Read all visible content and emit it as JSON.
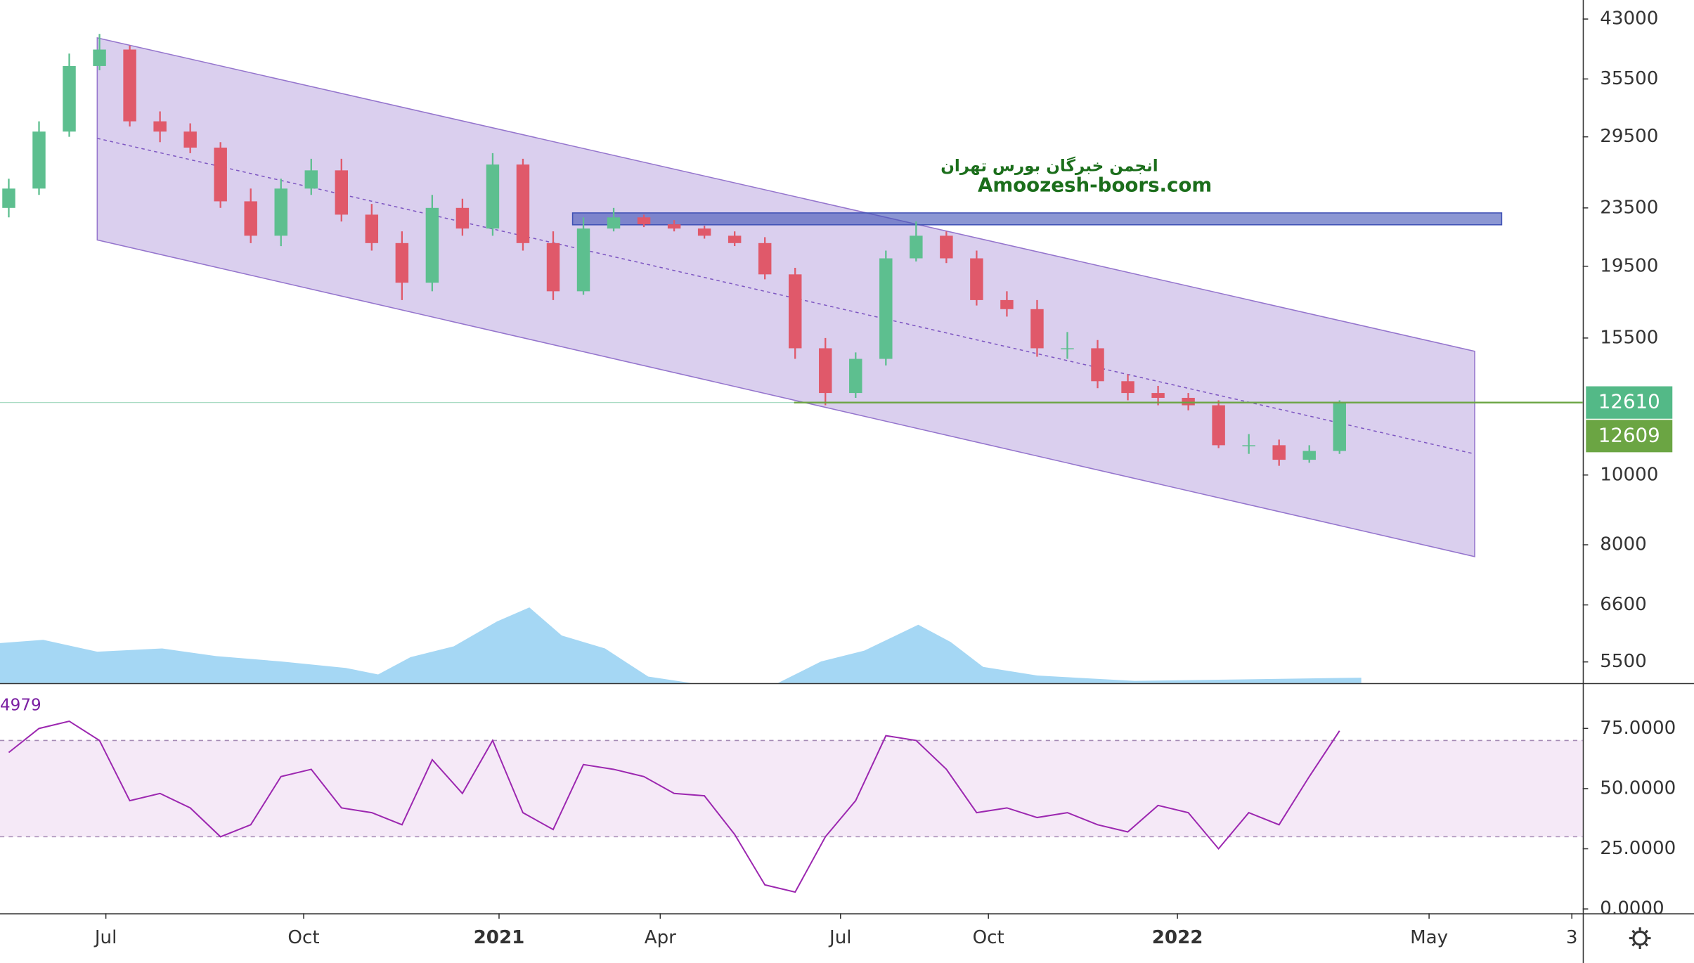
{
  "chart_data": {
    "type": "candlestick",
    "open": [
      23500,
      25000,
      30000,
      37000,
      39000,
      31000,
      30000,
      28500,
      24000,
      21500,
      25000,
      26500,
      23000,
      21000,
      18500,
      23500,
      22000,
      27000,
      21000,
      18000,
      22000,
      22800,
      22300,
      22000,
      21500,
      21000,
      19000,
      15000,
      13000,
      14500,
      20000,
      21500,
      20000,
      17500,
      17000,
      15000,
      15000,
      13500,
      13000,
      12800,
      12500,
      11000,
      11000,
      10500,
      10800
    ],
    "high": [
      25800,
      31000,
      38500,
      41000,
      39500,
      32000,
      30800,
      29000,
      25000,
      25800,
      27500,
      27500,
      23800,
      21800,
      24500,
      24200,
      28000,
      27500,
      21800,
      22800,
      23500,
      23000,
      22600,
      22200,
      21800,
      21400,
      19400,
      15500,
      14800,
      20500,
      22500,
      21800,
      20500,
      18000,
      17500,
      15800,
      15400,
      13800,
      13300,
      13000,
      12700,
      11400,
      11200,
      11000,
      12700
    ],
    "low": [
      22800,
      24500,
      29500,
      36500,
      30500,
      29000,
      28000,
      23500,
      21000,
      20800,
      24500,
      22500,
      20500,
      17500,
      18000,
      21500,
      21500,
      20500,
      17500,
      17800,
      21800,
      22100,
      21800,
      21300,
      20800,
      18700,
      14500,
      12500,
      12800,
      14200,
      19800,
      19700,
      17200,
      16600,
      14600,
      14500,
      13200,
      12700,
      12500,
      12300,
      10900,
      10700,
      10300,
      10400,
      10700
    ],
    "close": [
      25000,
      30000,
      37000,
      39000,
      31000,
      30000,
      28500,
      24000,
      21500,
      25000,
      26500,
      23000,
      21000,
      18500,
      23500,
      22000,
      27000,
      21000,
      18000,
      22000,
      22800,
      22300,
      22000,
      21500,
      21000,
      19000,
      15000,
      13000,
      14500,
      20000,
      21500,
      20000,
      17500,
      17000,
      15000,
      15000,
      13500,
      13000,
      12800,
      12500,
      11000,
      11000,
      10500,
      10800,
      12610
    ],
    "up_color": "#5dbf8f",
    "down_color": "#e0596a",
    "log_scale": true,
    "ylim": [
      5140,
      45700
    ],
    "yticks": [
      5500,
      6600,
      8000,
      10000,
      15500,
      19500,
      23500,
      29500,
      35500,
      43000
    ],
    "xlim": [
      -0.29,
      52.04
    ],
    "xticks": [
      {
        "value": 3.21,
        "label": "Jul"
      },
      {
        "value": 9.75,
        "label": "Oct"
      },
      {
        "value": 16.21,
        "label": "2021"
      },
      {
        "value": 21.54,
        "label": "Apr"
      },
      {
        "value": 27.5,
        "label": "Jul"
      },
      {
        "value": 32.39,
        "label": "Oct"
      },
      {
        "value": 38.64,
        "label": "2022"
      },
      {
        "value": 46.96,
        "label": "May"
      },
      {
        "value": 51.68,
        "label": "3"
      }
    ],
    "price_lines": [
      {
        "value": 12610,
        "color": "#53b987"
      },
      {
        "value": 12609,
        "color": "#6ba543"
      }
    ],
    "annotation": {
      "title": "انجمن خبرگان بورس تهران",
      "subtitle": "Amoozesh-boors.com"
    },
    "rsi": {
      "label": "4979",
      "color": "#9c27b0",
      "values": [
        65,
        75,
        78,
        70,
        45,
        48,
        42,
        30,
        35,
        55,
        58,
        42,
        40,
        35,
        62,
        48,
        70,
        40,
        33,
        60,
        58,
        55,
        48,
        47,
        31,
        10,
        7,
        30,
        45,
        72,
        70,
        58,
        40,
        42,
        38,
        40,
        35,
        32,
        43,
        40,
        25,
        40,
        35,
        55,
        74
      ],
      "ylim": [
        -1.8,
        93.4
      ],
      "yticks": [
        {
          "value": 0,
          "label": "0.0000"
        },
        {
          "value": 25,
          "label": "25.0000"
        },
        {
          "value": 50,
          "label": "50.0000"
        },
        {
          "value": 75,
          "label": "75.0000"
        }
      ],
      "band": [
        30,
        70
      ]
    }
  }
}
